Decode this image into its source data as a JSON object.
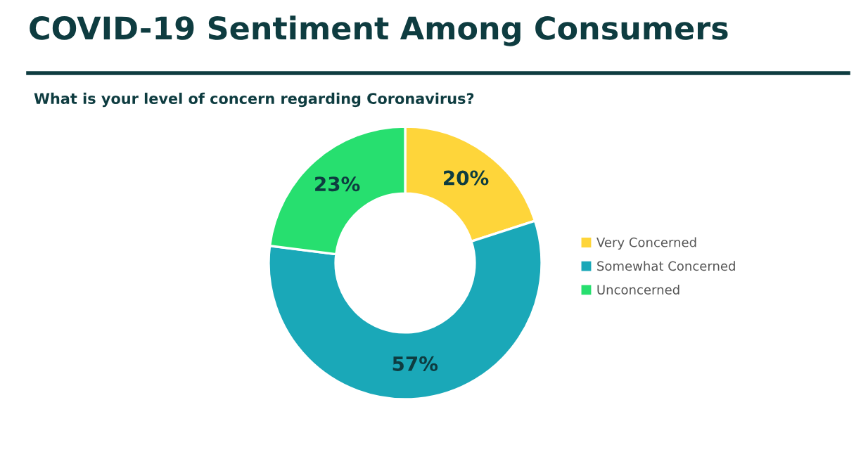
{
  "chart_data": {
    "type": "donut",
    "title": "COVID-19 Sentiment Among Consumers",
    "subtitle": "What is your level of concern regarding Coronavirus?",
    "categories": [
      "Very Concerned",
      "Somewhat Concerned",
      "Unconcerned"
    ],
    "values": [
      20,
      57,
      23
    ],
    "colors": [
      "#fed53a",
      "#1aa8b8",
      "#27df6f"
    ],
    "value_labels": [
      "20%",
      "57%",
      "23%"
    ],
    "legend": "right"
  }
}
